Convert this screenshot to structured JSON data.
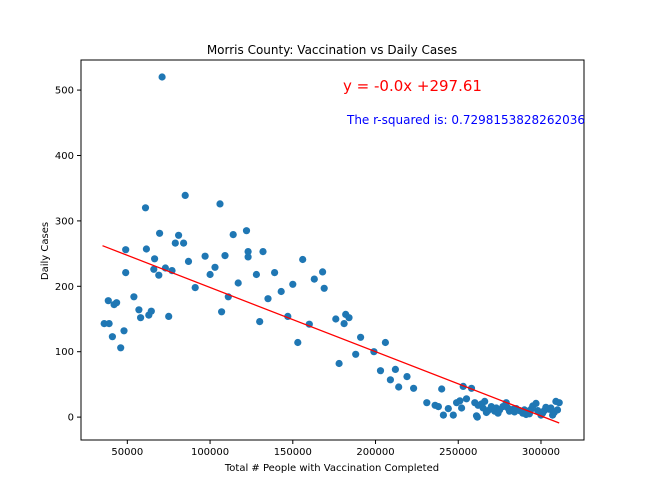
{
  "chart_data": {
    "type": "scatter",
    "title": "Morris County: Vaccination vs Daily Cases",
    "xlabel": "Total # People with Vaccination Completed",
    "ylabel": "Daily Cases",
    "xlim": [
      22000,
      326000
    ],
    "ylim": [
      -35,
      546
    ],
    "xticks": [
      50000,
      100000,
      150000,
      200000,
      250000,
      300000
    ],
    "xtick_labels": [
      "50000",
      "100000",
      "150000",
      "200000",
      "250000",
      "300000"
    ],
    "yticks": [
      0,
      100,
      200,
      300,
      400,
      500
    ],
    "ytick_labels": [
      "0",
      "100",
      "200",
      "300",
      "400",
      "500"
    ],
    "grid": false,
    "legend": "none",
    "point_color": "#1f77b4",
    "line_color": "#ff0000",
    "equation_color": "#ff0000",
    "rsquared_color": "#0000ff",
    "regression": {
      "equation_text": "y = -0.0x +297.61",
      "rsquared_text": "The r-squared is: 0.7298153828262036",
      "x": [
        35000,
        311000
      ],
      "y": [
        262,
        -9
      ]
    },
    "points": [
      [
        36000,
        143
      ],
      [
        38500,
        178
      ],
      [
        39000,
        143
      ],
      [
        41000,
        123
      ],
      [
        42000,
        172
      ],
      [
        43500,
        175
      ],
      [
        46000,
        106
      ],
      [
        48000,
        132
      ],
      [
        49000,
        256
      ],
      [
        49000,
        221
      ],
      [
        54000,
        184
      ],
      [
        57000,
        164
      ],
      [
        58000,
        152
      ],
      [
        61000,
        320
      ],
      [
        61500,
        257
      ],
      [
        63000,
        156
      ],
      [
        64500,
        162
      ],
      [
        66000,
        226
      ],
      [
        66500,
        242
      ],
      [
        69000,
        217
      ],
      [
        69500,
        281
      ],
      [
        71000,
        520
      ],
      [
        73000,
        228
      ],
      [
        75000,
        154
      ],
      [
        77000,
        224
      ],
      [
        79000,
        266
      ],
      [
        81000,
        278
      ],
      [
        84000,
        266
      ],
      [
        85000,
        339
      ],
      [
        87000,
        238
      ],
      [
        91000,
        198
      ],
      [
        97000,
        246
      ],
      [
        100000,
        218
      ],
      [
        103000,
        229
      ],
      [
        106000,
        326
      ],
      [
        107000,
        161
      ],
      [
        109000,
        247
      ],
      [
        111000,
        184
      ],
      [
        114000,
        279
      ],
      [
        117000,
        205
      ],
      [
        122000,
        285
      ],
      [
        123000,
        245
      ],
      [
        123000,
        253
      ],
      [
        128000,
        218
      ],
      [
        130000,
        146
      ],
      [
        132000,
        253
      ],
      [
        135000,
        181
      ],
      [
        139000,
        221
      ],
      [
        143000,
        192
      ],
      [
        147000,
        154
      ],
      [
        150000,
        203
      ],
      [
        153000,
        114
      ],
      [
        156000,
        241
      ],
      [
        160000,
        142
      ],
      [
        163000,
        211
      ],
      [
        168000,
        222
      ],
      [
        169000,
        197
      ],
      [
        176000,
        150
      ],
      [
        178000,
        82
      ],
      [
        181000,
        143
      ],
      [
        182000,
        157
      ],
      [
        184000,
        152
      ],
      [
        188000,
        96
      ],
      [
        191000,
        122
      ],
      [
        199000,
        100
      ],
      [
        203000,
        71
      ],
      [
        206000,
        114
      ],
      [
        209000,
        57
      ],
      [
        212000,
        73
      ],
      [
        214000,
        46
      ],
      [
        219000,
        62
      ],
      [
        223000,
        44
      ],
      [
        231000,
        22
      ],
      [
        236000,
        18
      ],
      [
        238000,
        16
      ],
      [
        240000,
        43
      ],
      [
        241000,
        3
      ],
      [
        244000,
        13
      ],
      [
        247000,
        3
      ],
      [
        249000,
        22
      ],
      [
        251000,
        25
      ],
      [
        252000,
        14
      ],
      [
        253000,
        47
      ],
      [
        255000,
        28
      ],
      [
        258000,
        44
      ],
      [
        260000,
        22
      ],
      [
        261000,
        2
      ],
      [
        261500,
        0
      ],
      [
        262000,
        18
      ],
      [
        264000,
        20
      ],
      [
        265000,
        14
      ],
      [
        266000,
        24
      ],
      [
        267000,
        7
      ],
      [
        268000,
        10
      ],
      [
        270000,
        16
      ],
      [
        271000,
        12
      ],
      [
        272000,
        9
      ],
      [
        273000,
        14
      ],
      [
        274000,
        6
      ],
      [
        275000,
        11
      ],
      [
        277000,
        16
      ],
      [
        279000,
        22
      ],
      [
        280000,
        14
      ],
      [
        281000,
        9
      ],
      [
        283000,
        12
      ],
      [
        284000,
        8
      ],
      [
        285000,
        13
      ],
      [
        287000,
        10
      ],
      [
        289000,
        6
      ],
      [
        290000,
        11
      ],
      [
        291000,
        4
      ],
      [
        292000,
        9
      ],
      [
        293000,
        5
      ],
      [
        294000,
        12
      ],
      [
        295000,
        17
      ],
      [
        297000,
        21
      ],
      [
        298000,
        10
      ],
      [
        300000,
        3
      ],
      [
        301000,
        6
      ],
      [
        302000,
        10
      ],
      [
        303000,
        15
      ],
      [
        305000,
        12
      ],
      [
        306000,
        14
      ],
      [
        307000,
        3
      ],
      [
        308000,
        7
      ],
      [
        309000,
        24
      ],
      [
        310000,
        11
      ],
      [
        311000,
        22
      ]
    ]
  }
}
